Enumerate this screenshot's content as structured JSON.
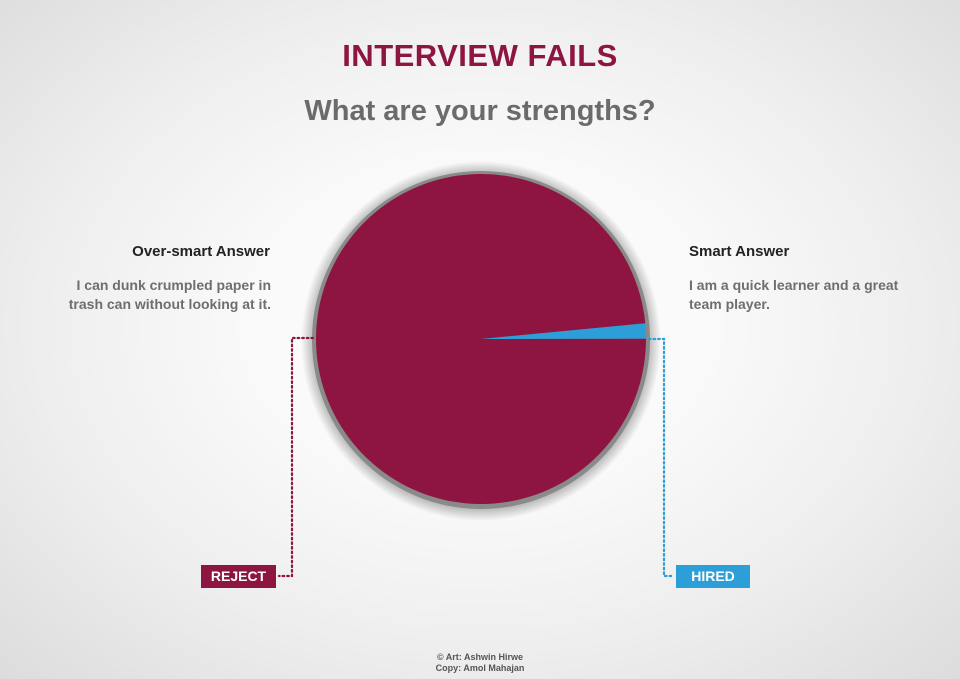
{
  "header": {
    "title": "INTERVIEW FAILS",
    "subtitle": "What are your strengths?"
  },
  "annotations": {
    "left": {
      "heading": "Over-smart Answer",
      "text": "I can dunk crumpled paper in\ntrash can without looking at it."
    },
    "right": {
      "heading": "Smart Answer",
      "text": "I am a quick learner and a great\nteam player."
    }
  },
  "badges": {
    "reject": "REJECT",
    "hired": "HIRED"
  },
  "credits": {
    "art": "© Art: Ashwin Hirwe",
    "copy": "Copy: Amol Mahajan"
  },
  "colors": {
    "over_smart": "#8e1541",
    "smart": "#2c9fd8",
    "title": "#8e1541",
    "subtitle": "#6b6b6b"
  },
  "chart_data": {
    "type": "pie",
    "title": "What are your strengths?",
    "start_angle_deg": -5.5,
    "slices": [
      {
        "label": "Smart Answer",
        "value": 1.5,
        "outcome": "HIRED",
        "color": "#2c9fd8"
      },
      {
        "label": "Over-smart Answer",
        "value": 98.5,
        "outcome": "REJECT",
        "color": "#8e1541"
      }
    ]
  }
}
